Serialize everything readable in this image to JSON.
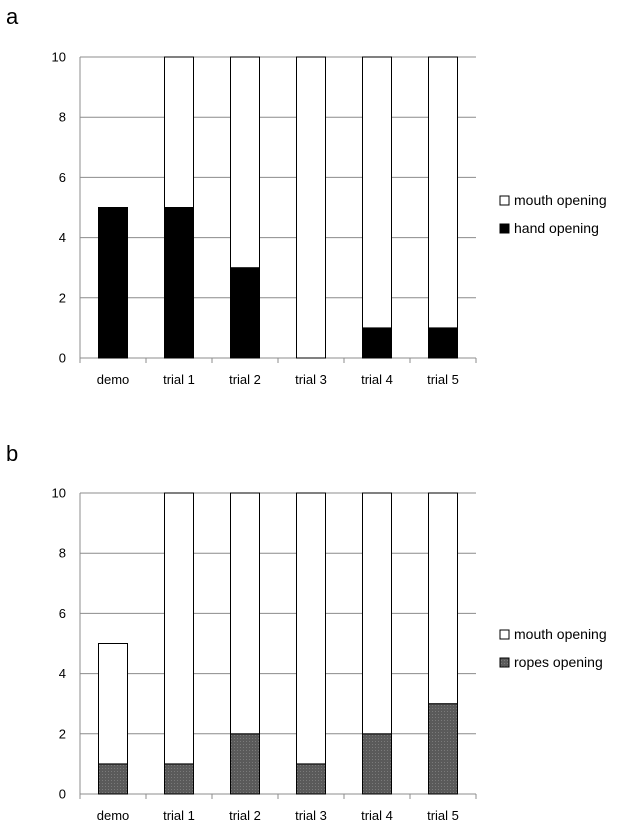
{
  "chart_data": [
    {
      "panel_label": "a",
      "type": "bar",
      "stacked": true,
      "categories": [
        "demo",
        "trial 1",
        "trial 2",
        "trial 3",
        "trial 4",
        "trial 5"
      ],
      "series": [
        {
          "name": "hand opening",
          "values": [
            5,
            5,
            3,
            0,
            1,
            1
          ],
          "color": "#000000"
        },
        {
          "name": "mouth opening",
          "values": [
            0,
            5,
            7,
            10,
            9,
            9
          ],
          "color": "#ffffff"
        }
      ],
      "legend_order": [
        "mouth opening",
        "hand opening"
      ],
      "ylim": [
        0,
        10
      ],
      "yticks": [
        0,
        2,
        4,
        6,
        8,
        10
      ],
      "grid": true,
      "legend_position": "right"
    },
    {
      "panel_label": "b",
      "type": "bar",
      "stacked": true,
      "categories": [
        "demo",
        "trial 1",
        "trial 2",
        "trial 3",
        "trial 4",
        "trial 5"
      ],
      "series": [
        {
          "name": "ropes opening",
          "values": [
            1,
            1,
            2,
            1,
            2,
            3
          ],
          "color": "#595959",
          "pattern": "dotted"
        },
        {
          "name": "mouth opening",
          "values": [
            4,
            9,
            8,
            9,
            8,
            7
          ],
          "color": "#ffffff"
        }
      ],
      "legend_order": [
        "mouth opening",
        "ropes opening"
      ],
      "ylim": [
        0,
        10
      ],
      "yticks": [
        0,
        2,
        4,
        6,
        8,
        10
      ],
      "grid": true,
      "legend_position": "right"
    }
  ]
}
